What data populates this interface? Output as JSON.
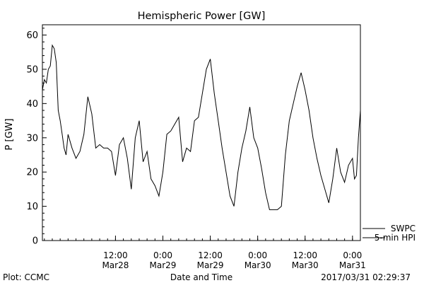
{
  "chart_data": {
    "type": "line",
    "title": "Hemispheric Power [GW]",
    "xlabel": "Date and Time",
    "ylabel": "P [GW]",
    "ylim": [
      0,
      63
    ],
    "yticks": [
      0,
      10,
      20,
      30,
      40,
      50,
      60
    ],
    "xlim": [
      "2017-03-27 17:30",
      "2017-03-31 02:00"
    ],
    "xticks": [
      {
        "t": "2017-03-28 12:00",
        "time": "12:00",
        "date": "Mar28"
      },
      {
        "t": "2017-03-29 00:00",
        "time": "0:00",
        "date": "Mar29"
      },
      {
        "t": "2017-03-29 12:00",
        "time": "12:00",
        "date": "Mar29"
      },
      {
        "t": "2017-03-30 00:00",
        "time": "0:00",
        "date": "Mar30"
      },
      {
        "t": "2017-03-30 12:00",
        "time": "12:00",
        "date": "Mar30"
      },
      {
        "t": "2017-03-31 00:00",
        "time": "0:00",
        "date": "Mar31"
      }
    ],
    "grid": false,
    "legend_position": "bottom-right, outside plot",
    "series": [
      {
        "name": "SWPC",
        "color": "#000000",
        "x": [],
        "values": []
      },
      {
        "name": "5-min HPI",
        "color": "#000000",
        "x": [
          "2017-03-27 17:30",
          "2017-03-27 18:00",
          "2017-03-27 18:30",
          "2017-03-27 19:00",
          "2017-03-27 19:30",
          "2017-03-27 20:00",
          "2017-03-27 20:30",
          "2017-03-27 21:00",
          "2017-03-27 21:30",
          "2017-03-27 22:00",
          "2017-03-27 22:30",
          "2017-03-27 23:00",
          "2017-03-27 23:30",
          "2017-03-28 00:00",
          "2017-03-28 01:00",
          "2017-03-28 02:00",
          "2017-03-28 03:00",
          "2017-03-28 04:00",
          "2017-03-28 05:00",
          "2017-03-28 06:00",
          "2017-03-28 07:00",
          "2017-03-28 08:00",
          "2017-03-28 09:00",
          "2017-03-28 10:00",
          "2017-03-28 11:00",
          "2017-03-28 12:00",
          "2017-03-28 13:00",
          "2017-03-28 14:00",
          "2017-03-28 15:00",
          "2017-03-28 16:00",
          "2017-03-28 17:00",
          "2017-03-28 18:00",
          "2017-03-28 19:00",
          "2017-03-28 20:00",
          "2017-03-28 21:00",
          "2017-03-28 22:00",
          "2017-03-28 23:00",
          "2017-03-29 00:00",
          "2017-03-29 01:00",
          "2017-03-29 02:00",
          "2017-03-29 03:00",
          "2017-03-29 04:00",
          "2017-03-29 05:00",
          "2017-03-29 06:00",
          "2017-03-29 07:00",
          "2017-03-29 08:00",
          "2017-03-29 09:00",
          "2017-03-29 10:00",
          "2017-03-29 11:00",
          "2017-03-29 12:00",
          "2017-03-29 13:00",
          "2017-03-29 14:00",
          "2017-03-29 15:00",
          "2017-03-29 16:00",
          "2017-03-29 17:00",
          "2017-03-29 18:00",
          "2017-03-29 19:00",
          "2017-03-29 20:00",
          "2017-03-29 21:00",
          "2017-03-29 22:00",
          "2017-03-29 23:00",
          "2017-03-30 00:00",
          "2017-03-30 01:00",
          "2017-03-30 02:00",
          "2017-03-30 03:00",
          "2017-03-30 04:00",
          "2017-03-30 05:00",
          "2017-03-30 06:00",
          "2017-03-30 07:00",
          "2017-03-30 08:00",
          "2017-03-30 09:00",
          "2017-03-30 10:00",
          "2017-03-30 11:00",
          "2017-03-30 12:00",
          "2017-03-30 13:00",
          "2017-03-30 14:00",
          "2017-03-30 15:00",
          "2017-03-30 16:00",
          "2017-03-30 17:00",
          "2017-03-30 18:00",
          "2017-03-30 19:00",
          "2017-03-30 20:00",
          "2017-03-30 21:00",
          "2017-03-30 22:00",
          "2017-03-30 23:00",
          "2017-03-31 00:00",
          "2017-03-31 00:30",
          "2017-03-31 01:00",
          "2017-03-31 01:30",
          "2017-03-31 02:00"
        ],
        "values": [
          44,
          47,
          46,
          50,
          51,
          57,
          56,
          52,
          38,
          35,
          31,
          27,
          25,
          31,
          27,
          24,
          26,
          31,
          42,
          37,
          27,
          28,
          27,
          27,
          26,
          19,
          28,
          30,
          24,
          15,
          30,
          35,
          23,
          26,
          18,
          16,
          13,
          20,
          31,
          32,
          34,
          36,
          23,
          27,
          26,
          35,
          36,
          43,
          50,
          53,
          43,
          35,
          27,
          20,
          13,
          10,
          20,
          27,
          32,
          39,
          30,
          27,
          21,
          14,
          9,
          9,
          9,
          10,
          25,
          35,
          40,
          45,
          49,
          44,
          38,
          30,
          24,
          19,
          15,
          11,
          18,
          27,
          20,
          17,
          22,
          24,
          18,
          19,
          30,
          38
        ]
      }
    ]
  },
  "footer": {
    "plot_credit": "Plot: CCMC",
    "timestamp": "2017/03/31 02:29:37"
  }
}
